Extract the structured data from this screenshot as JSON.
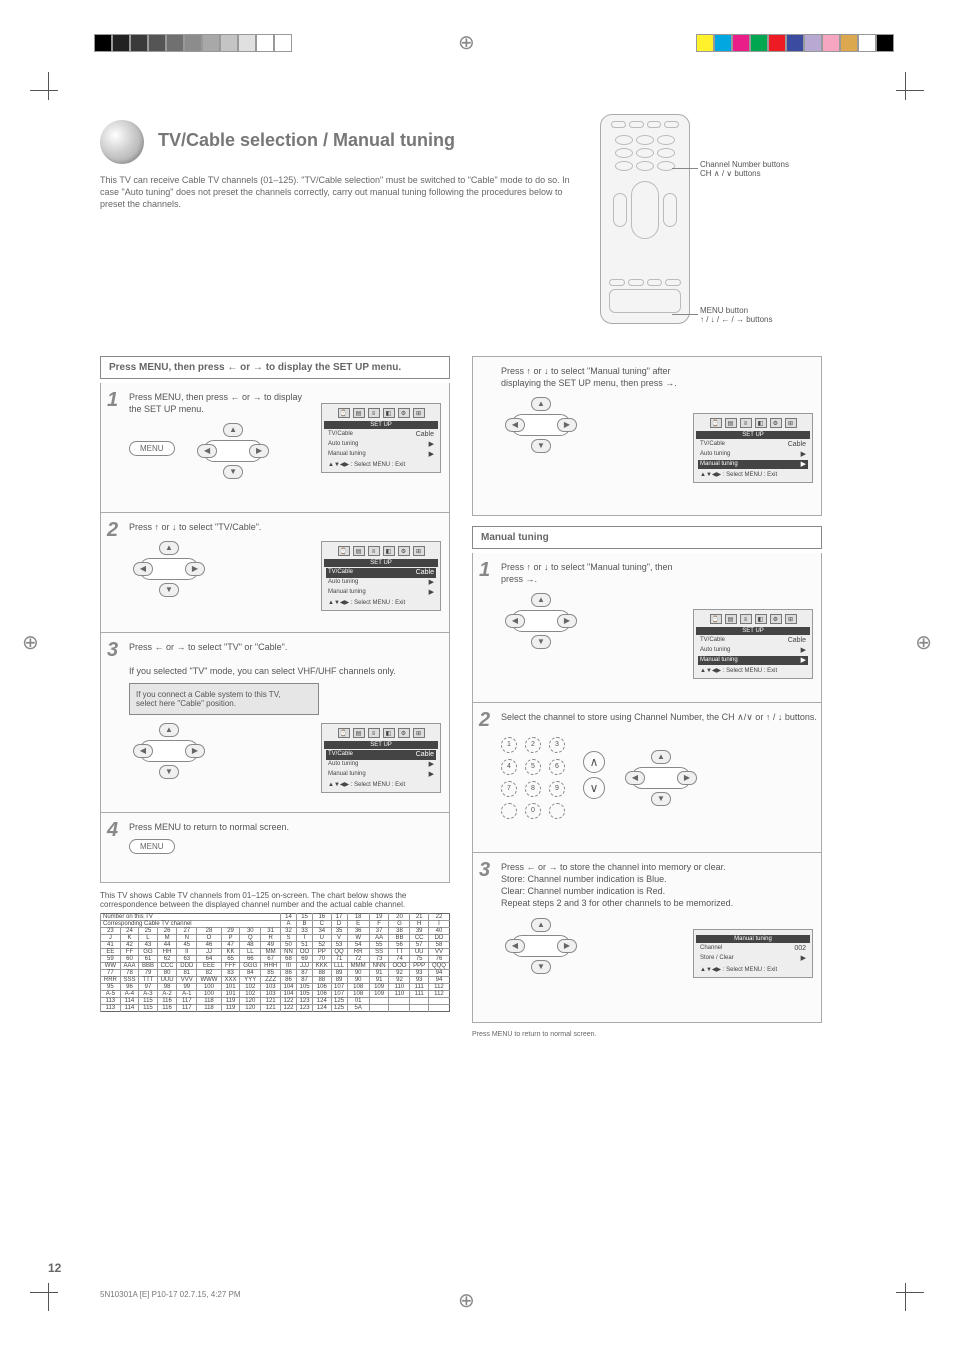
{
  "swatches_gray": [
    "#000000",
    "#222222",
    "#3a3a3a",
    "#555555",
    "#707070",
    "#8c8c8c",
    "#a8a8a8",
    "#c4c4c4",
    "#e0e0e0",
    "#ffffff",
    "#ffffff"
  ],
  "swatches_color": [
    "#fff22d",
    "#00a7e1",
    "#e91e89",
    "#00a650",
    "#ed1c24",
    "#3b4ba0",
    "#b8a9d3",
    "#f7a6c1",
    "#dca84f",
    "#ffffff",
    "#000000"
  ],
  "title": "TV/Cable selection / Manual tuning",
  "intro": "This TV can receive Cable TV channels (01–125). \"TV/Cable selection\" must be switched to \"Cable\" mode to do so. In case \"Auto tuning\" does not preset the channels correctly, carry out manual tuning following the procedures below to preset the channels.",
  "remote_callouts": {
    "top": "Channel Number buttons\nCH ∧ / ∨ buttons",
    "bottom": "MENU button\n↑ / ↓ / ← / → buttons"
  },
  "left_section_title": "Press MENU, then press ← or → to display the SET UP menu.",
  "steps_left": [
    {
      "num": "1",
      "text": "Press MENU, then press ← or → to display the SET UP menu."
    },
    {
      "num": "2",
      "text": "Press ↑ or ↓ to select \"TV/Cable\"."
    },
    {
      "num": "3",
      "text": "Press ← or → to select \"TV\" or \"Cable\".\n\nIf you selected \"TV\" mode, you can select VHF/UHF channels only."
    },
    {
      "num": "4",
      "text": "Press MENU to return to normal screen."
    }
  ],
  "step3_notebox": "If you connect a Cable system to this TV,\nselect here \"Cable\" position.",
  "right_section_title": "Manual tuning",
  "right_intro": "Press ↑ or ↓ to select \"Manual tuning\" after displaying the SET UP menu, then press →.",
  "steps_right": [
    {
      "num": "1",
      "text": "Press ↑ or ↓ to select \"Manual tuning\", then press →."
    },
    {
      "num": "2",
      "text": "Select the channel to store using Channel Number, the CH ∧/∨ or ↑ / ↓ buttons."
    },
    {
      "num": "3",
      "text": "Press ← or → to store the channel into memory or clear.\nStore: Channel number indication is Blue.\nClear: Channel number indication is Red.\nRepeat steps 2 and 3 for other channels to be memorized."
    }
  ],
  "right_foot": "Press MENU to return to normal screen.",
  "screen": {
    "icons": [
      "⌚",
      "▤",
      "≡",
      "◧",
      "⚙",
      "⊞"
    ],
    "title_setup": "SET UP",
    "rows_setup": [
      [
        "TV/Cable",
        "Cable"
      ],
      [
        "Auto tuning",
        "▶"
      ],
      [
        "Manual tuning",
        "▶"
      ]
    ],
    "foot": "▲▼◀▶ : Select  MENU : Exit"
  },
  "screen_manual": {
    "rows": [
      [
        "Channel",
        "002"
      ],
      [
        "Store / Clear",
        "▶"
      ]
    ],
    "foot": "▲▼◀▶ : Select  MENU : Exit",
    "title": "Manual tuning"
  },
  "cable_note": "This TV shows Cable TV channels from 01–125 on-screen. The chart below shows the correspondence between the displayed channel number and the actual cable channel.",
  "cable_header_a": "Number on this TV",
  "cable_header_b": "Corresponding Cable TV channel",
  "cable_rows": [
    {
      "nums": [
        "",
        "",
        "",
        "",
        "",
        "",
        "",
        "",
        "",
        "14",
        "15",
        "16",
        "17",
        "18",
        "19",
        "20",
        "21",
        "22"
      ],
      "chs": [
        "",
        "",
        "",
        "",
        "",
        "",
        "",
        "",
        "",
        "A",
        "B",
        "C",
        "D",
        "E",
        "F",
        "G",
        "H",
        "I"
      ]
    },
    {
      "nums": [
        "23",
        "24",
        "25",
        "26",
        "27",
        "28",
        "29",
        "30",
        "31",
        "32",
        "33",
        "34",
        "35",
        "36",
        "37",
        "38",
        "39",
        "40"
      ],
      "chs": [
        "J",
        "K",
        "L",
        "M",
        "N",
        "O",
        "P",
        "Q",
        "R",
        "S",
        "T",
        "U",
        "V",
        "W",
        "AA",
        "BB",
        "CC",
        "DD"
      ]
    },
    {
      "nums": [
        "41",
        "42",
        "43",
        "44",
        "45",
        "46",
        "47",
        "48",
        "49",
        "50",
        "51",
        "52",
        "53",
        "54",
        "55",
        "56",
        "57",
        "58"
      ],
      "chs": [
        "EE",
        "FF",
        "GG",
        "HH",
        "II",
        "JJ",
        "KK",
        "LL",
        "MM",
        "NN",
        "OO",
        "PP",
        "QQ",
        "RR",
        "SS",
        "TT",
        "UU",
        "VV"
      ]
    },
    {
      "nums": [
        "59",
        "60",
        "61",
        "62",
        "63",
        "64",
        "65",
        "66",
        "67",
        "68",
        "69",
        "70",
        "71",
        "72",
        "73",
        "74",
        "75",
        "76"
      ],
      "chs": [
        "WW",
        "AAA",
        "BBB",
        "CCC",
        "DDD",
        "EEE",
        "FFF",
        "GGG",
        "HHH",
        "III",
        "JJJ",
        "KKK",
        "LLL",
        "MMM",
        "NNN",
        "OOO",
        "PPP",
        "QQQ"
      ]
    },
    {
      "nums": [
        "77",
        "78",
        "79",
        "80",
        "81",
        "82",
        "83",
        "84",
        "85",
        "86",
        "87",
        "88",
        "89",
        "90",
        "91",
        "92",
        "93",
        "94"
      ],
      "chs": [
        "RRR",
        "SSS",
        "TTT",
        "UUU",
        "VVV",
        "WWW",
        "XXX",
        "YYY",
        "ZZZ",
        "86",
        "87",
        "88",
        "89",
        "90",
        "91",
        "92",
        "93",
        "94"
      ]
    },
    {
      "nums": [
        "95",
        "96",
        "97",
        "98",
        "99",
        "100",
        "101",
        "102",
        "103",
        "104",
        "105",
        "106",
        "107",
        "108",
        "109",
        "110",
        "111",
        "112"
      ],
      "chs": [
        "A-5",
        "A-4",
        "A-3",
        "A-2",
        "A-1",
        "100",
        "101",
        "102",
        "103",
        "104",
        "105",
        "106",
        "107",
        "108",
        "109",
        "110",
        "111",
        "112"
      ]
    },
    {
      "nums": [
        "113",
        "114",
        "115",
        "116",
        "117",
        "118",
        "119",
        "120",
        "121",
        "122",
        "123",
        "124",
        "125",
        "01",
        "",
        "",
        "",
        ""
      ],
      "chs": [
        "113",
        "114",
        "115",
        "116",
        "117",
        "118",
        "119",
        "120",
        "121",
        "122",
        "123",
        "124",
        "125",
        "5A",
        "",
        "",
        "",
        ""
      ]
    }
  ],
  "pagenum": "12",
  "filefoot": "5N10301A [E] P10-17                                    02.7.15, 4:27 PM"
}
